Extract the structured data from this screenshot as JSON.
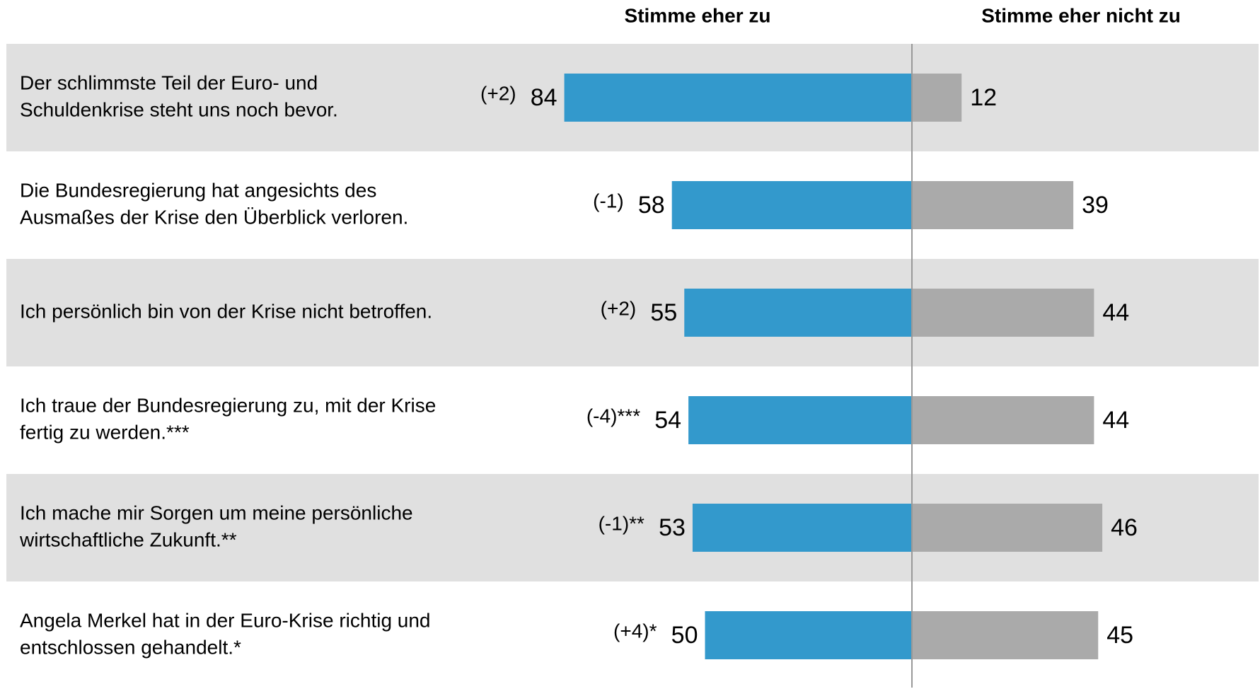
{
  "chart_data": {
    "type": "diverging_bar",
    "categories": [
      [
        "Der schlimmste Teil der Euro- und",
        "Schuldenkrise steht uns noch bevor."
      ],
      [
        "Die Bundesregierung hat angesichts des",
        "Ausmaßes der Krise den Überblick verloren."
      ],
      [
        "Ich persönlich bin von der Krise nicht betroffen."
      ],
      [
        "Ich traue der Bundesregierung zu, mit der Krise",
        "fertig zu werden.***"
      ],
      [
        "Ich mache mir Sorgen um meine persönliche",
        "wirtschaftliche Zukunft.**"
      ],
      [
        "Angela Merkel hat in der Euro-Krise richtig und",
        "entschlossen gehandelt.*"
      ]
    ],
    "changes": [
      "(+2)",
      "(-1)",
      "(+2)",
      "(-4)***",
      "(-1)**",
      "(+4)*"
    ],
    "series": [
      {
        "name": "Stimme eher zu",
        "color": "#3399cc",
        "values": [
          84,
          58,
          55,
          54,
          53,
          50
        ]
      },
      {
        "name": "Stimme eher nicht zu",
        "color": "#aaaaaa",
        "values": [
          12,
          39,
          44,
          44,
          46,
          45
        ]
      }
    ]
  }
}
